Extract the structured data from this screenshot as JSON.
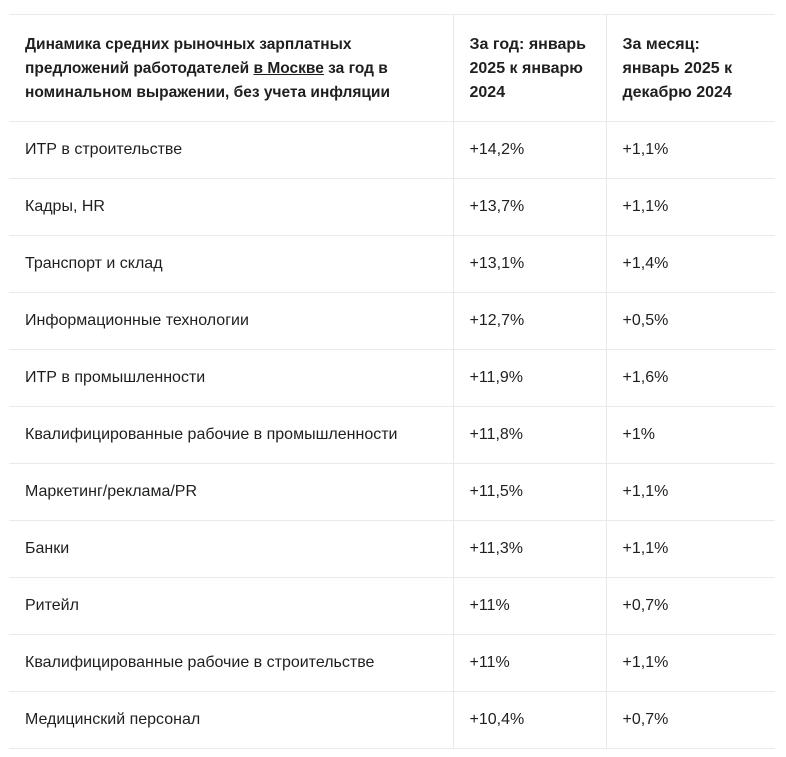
{
  "table": {
    "header": {
      "col1_part1": "Динамика средних рыночных зарплатных предложений работодателей ",
      "col1_link": "в Москве",
      "col1_part2": " за год в номинальном выражении, без учета инфляции",
      "col2": "За год: январь 2025 к январю 2024",
      "col3": "За месяц: январь 2025 к декабрю 2024"
    },
    "rows": [
      {
        "category": "ИТР в строительстве",
        "year": "+14,2%",
        "month": "+1,1%"
      },
      {
        "category": "Кадры, HR",
        "year": "+13,7%",
        "month": "+1,1%"
      },
      {
        "category": "Транспорт и склад",
        "year": "+13,1%",
        "month": "+1,4%"
      },
      {
        "category": "Информационные технологии",
        "year": "+12,7%",
        "month": "+0,5%"
      },
      {
        "category": "ИТР в промышленности",
        "year": "+11,9%",
        "month": "+1,6%"
      },
      {
        "category": "Квалифицированные рабочие в промышленности",
        "year": "+11,8%",
        "month": "+1%"
      },
      {
        "category": "Маркетинг/реклама/PR",
        "year": "+11,5%",
        "month": "+1,1%"
      },
      {
        "category": "Банки",
        "year": "+11,3%",
        "month": "+1,1%"
      },
      {
        "category": "Ритейл",
        "year": "+11%",
        "month": "+0,7%"
      },
      {
        "category": "Квалифицированные рабочие в строительстве",
        "year": "+11%",
        "month": "+1,1%"
      },
      {
        "category": "Медицинский персонал",
        "year": "+10,4%",
        "month": "+0,7%"
      }
    ]
  }
}
